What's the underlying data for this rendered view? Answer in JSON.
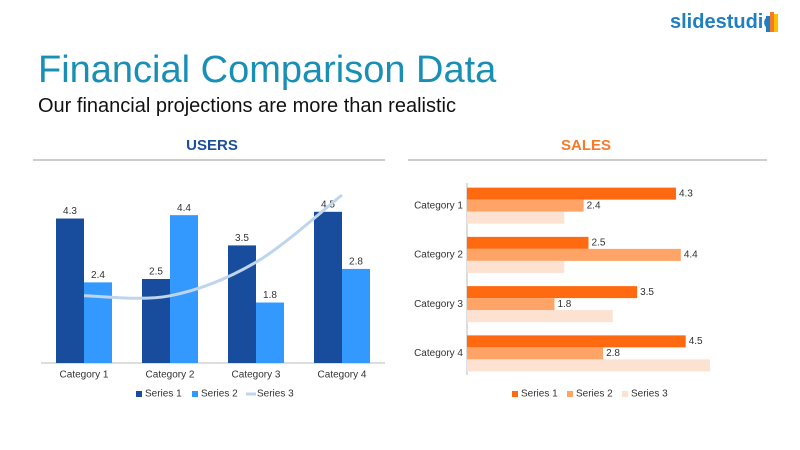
{
  "header": {
    "logo": "slidestudio",
    "title": "Financial Comparison Data",
    "subtitle": "Our financial projections are more than realistic"
  },
  "chart_data": [
    {
      "type": "bar",
      "title": "USERS",
      "title_color": "#1d4e9c",
      "categories": [
        "Category 1",
        "Category 2",
        "Category 3",
        "Category 4"
      ],
      "series": [
        {
          "name": "Series 1",
          "color": "#184d9e",
          "values": [
            4.3,
            2.5,
            3.5,
            4.5
          ],
          "labels": true
        },
        {
          "name": "Series 2",
          "color": "#3399ff",
          "values": [
            2.4,
            4.4,
            1.8,
            2.8
          ],
          "labels": true
        },
        {
          "name": "Series 3",
          "color": "#bfd5ec",
          "type": "line",
          "values": [
            2,
            2,
            3,
            5
          ],
          "labels": false
        }
      ],
      "ylim": [
        0,
        5
      ],
      "legend": "bottom"
    },
    {
      "type": "barh",
      "title": "SALES",
      "title_color": "#f7792a",
      "categories": [
        "Category 1",
        "Category 2",
        "Category 3",
        "Category 4"
      ],
      "series": [
        {
          "name": "Series 1",
          "color": "#ff6a10",
          "values": [
            4.3,
            2.5,
            3.5,
            4.5
          ],
          "labels": true
        },
        {
          "name": "Series 2",
          "color": "#ffa366",
          "values": [
            2.4,
            4.4,
            1.8,
            2.8
          ],
          "labels": true
        },
        {
          "name": "Series 3",
          "color": "#fde1d1",
          "values": [
            2,
            2,
            3,
            5
          ],
          "labels": false
        }
      ],
      "xlim": [
        0,
        5
      ],
      "legend": "bottom"
    }
  ]
}
